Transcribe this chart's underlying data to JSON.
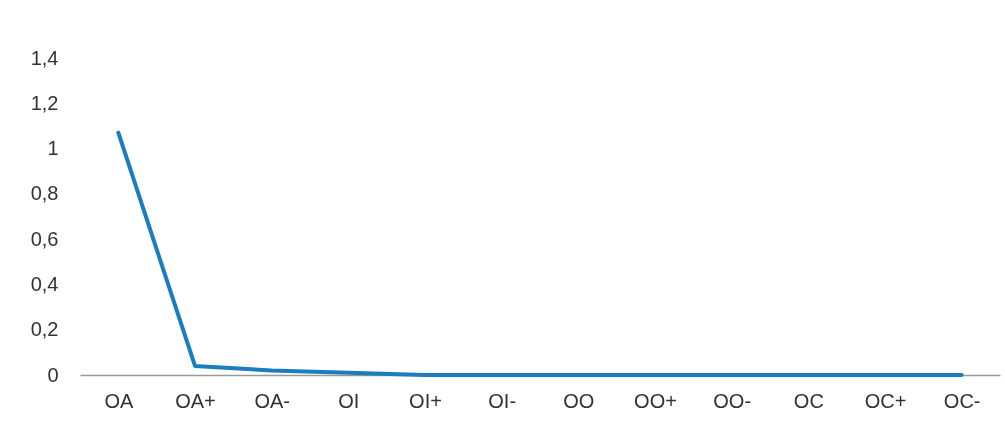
{
  "chart_data": {
    "type": "line",
    "categories": [
      "OA",
      "OA+",
      "OA-",
      "OI",
      "OI+",
      "OI-",
      "OO",
      "OO+",
      "OO-",
      "OC",
      "OC+",
      "OC-"
    ],
    "series": [
      {
        "color": "#1a7dc0",
        "values": [
          1.07,
          0.04,
          0.02,
          0.01,
          0,
          0,
          0,
          0,
          0,
          0,
          0,
          0
        ]
      }
    ],
    "ylim": [
      0,
      1.4
    ],
    "yticks": [
      0,
      {
        "value": 0.2,
        "label": "0,2"
      },
      {
        "value": 0.4,
        "label": "0,4"
      },
      {
        "value": 0.6,
        "label": "0,6"
      },
      {
        "value": 0.8,
        "label": "0,8"
      },
      1,
      {
        "value": 1.2,
        "label": "1,2"
      },
      {
        "value": 1.4,
        "label": "1,4"
      }
    ],
    "grid": false,
    "legend": false,
    "marker": "none",
    "line_style": "solid"
  }
}
